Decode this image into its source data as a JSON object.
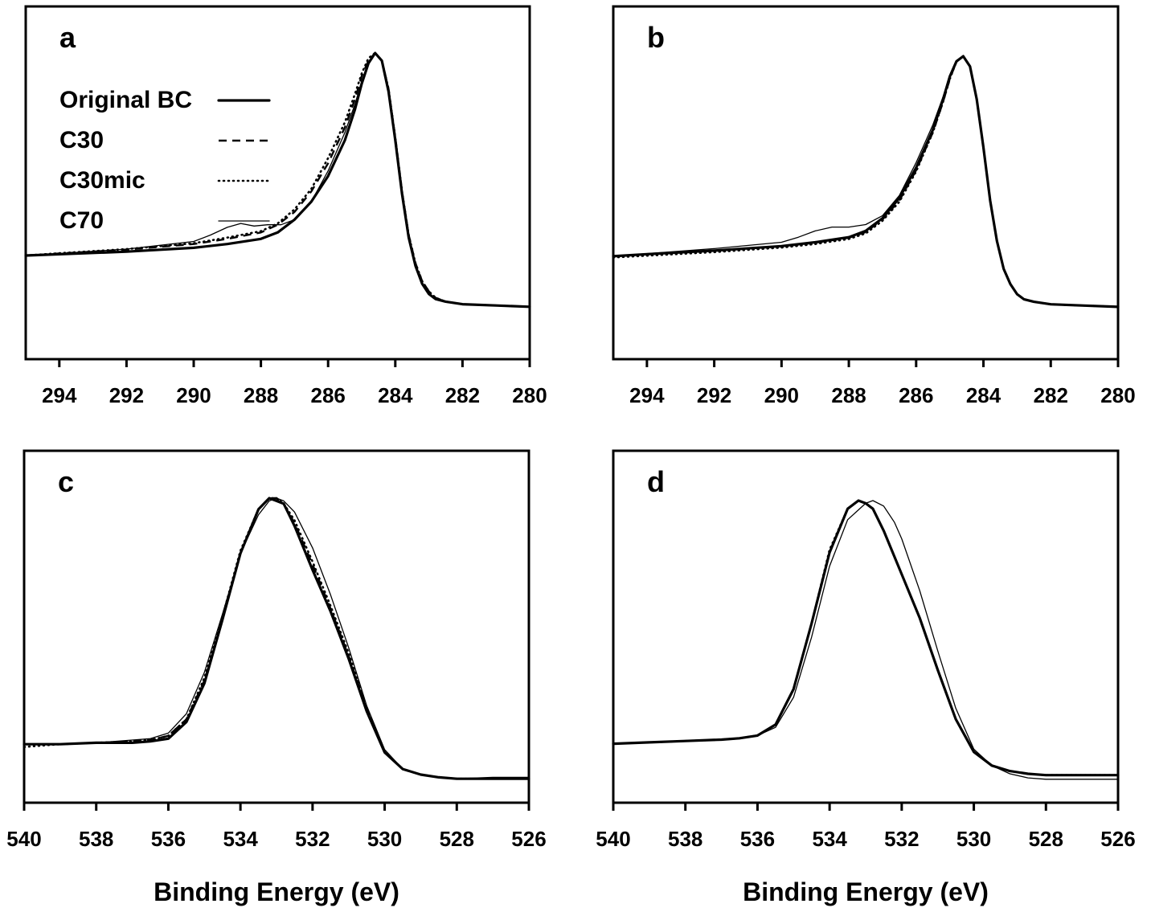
{
  "chart_data": [
    {
      "panel": "a",
      "type": "line",
      "xlabel": "",
      "xlim": [
        295,
        280
      ],
      "x_reversed": true,
      "xticks": [
        294,
        292,
        290,
        288,
        286,
        284,
        282,
        280
      ],
      "yticks_shown": false,
      "legend": {
        "placement": "top-left",
        "entries": [
          {
            "label": "Original BC",
            "style": "solid-thick"
          },
          {
            "label": "C30",
            "style": "dashed"
          },
          {
            "label": "C30mic",
            "style": "dotted"
          },
          {
            "label": "C70",
            "style": "solid-thin"
          }
        ]
      },
      "series": [
        {
          "name": "Original BC",
          "style": "solid-thick",
          "x": [
            295,
            294,
            292,
            290,
            289,
            288,
            287.5,
            287,
            286.5,
            286,
            285.5,
            285.2,
            285,
            284.8,
            284.6,
            284.4,
            284.2,
            284,
            283.8,
            283.6,
            283.4,
            283.2,
            283,
            282.8,
            282.5,
            282,
            281,
            280
          ],
          "y": [
            0.21,
            0.215,
            0.225,
            0.24,
            0.255,
            0.275,
            0.3,
            0.35,
            0.42,
            0.52,
            0.66,
            0.78,
            0.88,
            0.96,
            1.0,
            0.97,
            0.85,
            0.66,
            0.45,
            0.28,
            0.17,
            0.1,
            0.06,
            0.04,
            0.03,
            0.02,
            0.015,
            0.01
          ]
        },
        {
          "name": "C30",
          "style": "dashed",
          "x": [
            295,
            294,
            292,
            290,
            289,
            288,
            287.5,
            287,
            286.5,
            286,
            285.5,
            285.2,
            285,
            284.8,
            284.6,
            284.4,
            284.2,
            284,
            283.8,
            283.6,
            283.4,
            283.2,
            283,
            282.8,
            282.5,
            282,
            281,
            280
          ],
          "y": [
            0.21,
            0.218,
            0.233,
            0.255,
            0.275,
            0.3,
            0.33,
            0.38,
            0.46,
            0.57,
            0.71,
            0.82,
            0.91,
            0.97,
            1.0,
            0.97,
            0.86,
            0.67,
            0.46,
            0.29,
            0.18,
            0.11,
            0.07,
            0.045,
            0.03,
            0.02,
            0.015,
            0.01
          ]
        },
        {
          "name": "C30mic",
          "style": "dotted",
          "x": [
            295,
            294,
            292,
            290,
            289,
            288,
            287.5,
            287,
            286.5,
            286,
            285.5,
            285.2,
            285,
            284.8,
            284.6,
            284.4,
            284.2,
            284,
            283.8,
            283.6,
            283.4,
            283.2,
            283,
            282.8,
            282.5,
            282,
            281,
            280
          ],
          "y": [
            0.21,
            0.219,
            0.235,
            0.258,
            0.28,
            0.305,
            0.335,
            0.39,
            0.47,
            0.59,
            0.73,
            0.84,
            0.92,
            0.98,
            1.0,
            0.97,
            0.86,
            0.67,
            0.46,
            0.29,
            0.18,
            0.11,
            0.07,
            0.045,
            0.03,
            0.02,
            0.015,
            0.01
          ]
        },
        {
          "name": "C70",
          "style": "solid-thin",
          "x": [
            295,
            294,
            292,
            290,
            289.5,
            289,
            288.6,
            288.2,
            287.8,
            287.4,
            287,
            286.5,
            286,
            285.5,
            285.2,
            285,
            284.8,
            284.6,
            284.4,
            284.2,
            284,
            283.8,
            283.6,
            283.4,
            283.2,
            283,
            282.8,
            282.5,
            282,
            281,
            280
          ],
          "y": [
            0.21,
            0.218,
            0.235,
            0.265,
            0.29,
            0.32,
            0.335,
            0.325,
            0.33,
            0.33,
            0.35,
            0.42,
            0.54,
            0.69,
            0.8,
            0.89,
            0.96,
            1.0,
            0.97,
            0.85,
            0.66,
            0.45,
            0.28,
            0.17,
            0.1,
            0.06,
            0.04,
            0.03,
            0.02,
            0.015,
            0.01
          ]
        }
      ]
    },
    {
      "panel": "b",
      "type": "line",
      "xlabel": "",
      "xlim": [
        295,
        280
      ],
      "x_reversed": true,
      "xticks": [
        294,
        292,
        290,
        288,
        286,
        284,
        282,
        280
      ],
      "yticks_shown": false,
      "series": [
        {
          "name": "Original BC",
          "style": "solid-thick",
          "x": [
            295,
            294,
            292,
            290,
            289,
            288,
            287.5,
            287,
            286.5,
            286,
            285.5,
            285.2,
            285,
            284.8,
            284.6,
            284.4,
            284.2,
            284,
            283.8,
            283.6,
            283.4,
            283.2,
            283,
            282.8,
            282.5,
            282,
            281,
            280
          ],
          "y": [
            0.21,
            0.218,
            0.232,
            0.25,
            0.265,
            0.285,
            0.31,
            0.36,
            0.44,
            0.56,
            0.71,
            0.83,
            0.92,
            0.98,
            1.0,
            0.96,
            0.83,
            0.64,
            0.43,
            0.27,
            0.16,
            0.1,
            0.06,
            0.04,
            0.03,
            0.02,
            0.015,
            0.01
          ]
        },
        {
          "name": "C30",
          "style": "dashed",
          "x": [
            295,
            294,
            292,
            290,
            289,
            288,
            287.5,
            287,
            286.5,
            286,
            285.5,
            285.2,
            285,
            284.8,
            284.6,
            284.4,
            284.2,
            284,
            283.8,
            283.6,
            283.4,
            283.2,
            283,
            282.8,
            282.5,
            282,
            281,
            280
          ],
          "y": [
            0.21,
            0.217,
            0.231,
            0.249,
            0.263,
            0.283,
            0.305,
            0.355,
            0.43,
            0.55,
            0.7,
            0.82,
            0.91,
            0.98,
            1.0,
            0.96,
            0.83,
            0.64,
            0.43,
            0.27,
            0.16,
            0.1,
            0.06,
            0.04,
            0.03,
            0.02,
            0.015,
            0.01
          ]
        },
        {
          "name": "C30mic",
          "style": "dotted",
          "x": [
            295,
            294,
            292,
            290,
            289,
            288,
            287.5,
            287,
            286.5,
            286,
            285.5,
            285.2,
            285,
            284.8,
            284.6,
            284.4,
            284.2,
            284,
            283.8,
            283.6,
            283.4,
            283.2,
            283,
            282.8,
            282.5,
            282,
            281,
            280
          ],
          "y": [
            0.205,
            0.212,
            0.226,
            0.244,
            0.258,
            0.278,
            0.3,
            0.35,
            0.425,
            0.545,
            0.7,
            0.82,
            0.91,
            0.98,
            1.0,
            0.96,
            0.83,
            0.64,
            0.43,
            0.27,
            0.16,
            0.1,
            0.06,
            0.04,
            0.03,
            0.02,
            0.015,
            0.01
          ]
        },
        {
          "name": "C70",
          "style": "solid-thin",
          "x": [
            295,
            294,
            292,
            290,
            289.5,
            289,
            288.5,
            288,
            287.5,
            287,
            286.5,
            286,
            285.5,
            285.2,
            285,
            284.8,
            284.6,
            284.4,
            284.2,
            284,
            283.8,
            283.6,
            283.4,
            283.2,
            283,
            282.8,
            282.5,
            282,
            281,
            280
          ],
          "y": [
            0.21,
            0.22,
            0.24,
            0.265,
            0.285,
            0.31,
            0.325,
            0.325,
            0.335,
            0.37,
            0.45,
            0.58,
            0.73,
            0.84,
            0.92,
            0.98,
            1.0,
            0.96,
            0.83,
            0.64,
            0.43,
            0.27,
            0.16,
            0.1,
            0.06,
            0.04,
            0.03,
            0.02,
            0.015,
            0.01
          ]
        }
      ]
    },
    {
      "panel": "c",
      "type": "line",
      "xlabel": "Binding Energy (eV)",
      "xlim": [
        540,
        526
      ],
      "x_reversed": true,
      "xticks": [
        540,
        538,
        536,
        534,
        532,
        530,
        528,
        526
      ],
      "yticks_shown": false,
      "series": [
        {
          "name": "Original BC",
          "style": "solid-thick",
          "x": [
            540,
            539,
            538,
            537,
            536.5,
            536,
            535.5,
            535,
            534.5,
            534,
            533.5,
            533.2,
            533,
            532.8,
            532.5,
            532,
            531.5,
            531,
            530.5,
            530,
            529.5,
            529,
            528.5,
            528,
            527,
            526
          ],
          "y": [
            0.11,
            0.11,
            0.115,
            0.115,
            0.12,
            0.13,
            0.19,
            0.33,
            0.56,
            0.8,
            0.96,
            1.0,
            0.99,
            0.98,
            0.9,
            0.74,
            0.59,
            0.42,
            0.23,
            0.08,
            0.02,
            0.0,
            -0.01,
            -0.015,
            -0.015,
            -0.015
          ]
        },
        {
          "name": "C30",
          "style": "dashed",
          "x": [
            540,
            539,
            538,
            537,
            536.5,
            536,
            535.5,
            535,
            534.5,
            534,
            533.5,
            533.2,
            533,
            532.8,
            532.5,
            532,
            531.5,
            531,
            530.5,
            530,
            529.5,
            529,
            528.5,
            528,
            527,
            526
          ],
          "y": [
            0.11,
            0.11,
            0.115,
            0.12,
            0.125,
            0.14,
            0.2,
            0.34,
            0.56,
            0.8,
            0.96,
            1.0,
            1.0,
            0.98,
            0.91,
            0.76,
            0.6,
            0.43,
            0.24,
            0.08,
            0.02,
            0.0,
            -0.01,
            -0.015,
            -0.015,
            -0.015
          ]
        },
        {
          "name": "C30mic",
          "style": "dotted",
          "x": [
            540,
            539,
            538,
            537,
            536.5,
            536,
            535.5,
            535,
            534.5,
            534,
            533.5,
            533.2,
            533,
            532.8,
            532.5,
            532,
            531.5,
            531,
            530.5,
            530,
            529.5,
            529,
            528.5,
            528,
            527,
            526
          ],
          "y": [
            0.1,
            0.11,
            0.115,
            0.12,
            0.125,
            0.14,
            0.2,
            0.35,
            0.57,
            0.81,
            0.96,
            1.0,
            1.0,
            0.98,
            0.92,
            0.77,
            0.61,
            0.44,
            0.24,
            0.08,
            0.02,
            0.0,
            -0.01,
            -0.015,
            -0.015,
            -0.015
          ]
        },
        {
          "name": "C70",
          "style": "solid-thin",
          "x": [
            540,
            539,
            538,
            537,
            536.5,
            536,
            535.5,
            535,
            534.5,
            534,
            533.5,
            533.2,
            533,
            532.8,
            532.5,
            532,
            531.5,
            531,
            530.5,
            530,
            529.5,
            529,
            528.5,
            528,
            527,
            526
          ],
          "y": [
            0.11,
            0.11,
            0.115,
            0.125,
            0.13,
            0.15,
            0.22,
            0.37,
            0.58,
            0.8,
            0.94,
            0.99,
            1.0,
            0.99,
            0.95,
            0.82,
            0.65,
            0.46,
            0.25,
            0.09,
            0.02,
            0.0,
            -0.01,
            -0.015,
            -0.01,
            -0.01
          ]
        }
      ]
    },
    {
      "panel": "d",
      "type": "line",
      "xlabel": "Binding Energy (eV)",
      "xlim": [
        540,
        526
      ],
      "x_reversed": true,
      "xticks": [
        540,
        538,
        536,
        534,
        532,
        530,
        528,
        526
      ],
      "yticks_shown": false,
      "series": [
        {
          "name": "Original BC",
          "style": "solid-thick",
          "x": [
            540,
            539,
            538,
            537,
            536.5,
            536,
            535.5,
            535,
            534.5,
            534,
            533.5,
            533.2,
            533,
            532.8,
            532.5,
            532,
            531.5,
            531,
            530.5,
            530,
            529.5,
            529,
            528.5,
            528,
            527,
            526
          ],
          "y": [
            0.11,
            0.115,
            0.12,
            0.125,
            0.13,
            0.14,
            0.18,
            0.31,
            0.55,
            0.81,
            0.97,
            1.0,
            0.99,
            0.97,
            0.89,
            0.73,
            0.57,
            0.38,
            0.2,
            0.08,
            0.03,
            0.01,
            0.0,
            -0.005,
            -0.005,
            -0.005
          ]
        },
        {
          "name": "C30",
          "style": "dashed",
          "x": [
            540,
            539,
            538,
            537,
            536.5,
            536,
            535.5,
            535,
            534.5,
            534,
            533.5,
            533.2,
            533,
            532.8,
            532.5,
            532,
            531.5,
            531,
            530.5,
            530,
            529.5,
            529,
            528.5,
            528,
            527,
            526
          ],
          "y": [
            0.11,
            0.115,
            0.12,
            0.125,
            0.13,
            0.14,
            0.18,
            0.31,
            0.55,
            0.81,
            0.97,
            1.0,
            0.99,
            0.97,
            0.89,
            0.73,
            0.57,
            0.38,
            0.2,
            0.08,
            0.03,
            0.01,
            0.0,
            -0.005,
            -0.005,
            -0.005
          ]
        },
        {
          "name": "C30mic",
          "style": "dotted",
          "x": [
            540,
            539,
            538,
            537,
            536.5,
            536,
            535.5,
            535,
            534.5,
            534,
            533.5,
            533.2,
            533,
            532.8,
            532.5,
            532,
            531.5,
            531,
            530.5,
            530,
            529.5,
            529,
            528.5,
            528,
            527,
            526
          ],
          "y": [
            0.11,
            0.115,
            0.12,
            0.125,
            0.13,
            0.14,
            0.18,
            0.31,
            0.55,
            0.82,
            0.97,
            1.0,
            0.99,
            0.97,
            0.89,
            0.73,
            0.57,
            0.38,
            0.2,
            0.08,
            0.03,
            0.01,
            0.0,
            -0.005,
            -0.005,
            -0.005
          ]
        },
        {
          "name": "C70",
          "style": "solid-thin",
          "x": [
            540,
            539,
            538,
            537,
            536.5,
            536,
            535.5,
            535,
            534.5,
            534,
            533.5,
            533,
            532.8,
            532.5,
            532.2,
            532,
            531.5,
            531,
            530.5,
            530,
            529.5,
            529,
            528.5,
            528,
            527,
            526
          ],
          "y": [
            0.11,
            0.115,
            0.12,
            0.125,
            0.13,
            0.14,
            0.17,
            0.28,
            0.5,
            0.76,
            0.93,
            0.99,
            1.0,
            0.98,
            0.92,
            0.86,
            0.67,
            0.45,
            0.24,
            0.09,
            0.03,
            0.0,
            -0.015,
            -0.02,
            -0.02,
            -0.02
          ]
        }
      ]
    }
  ]
}
